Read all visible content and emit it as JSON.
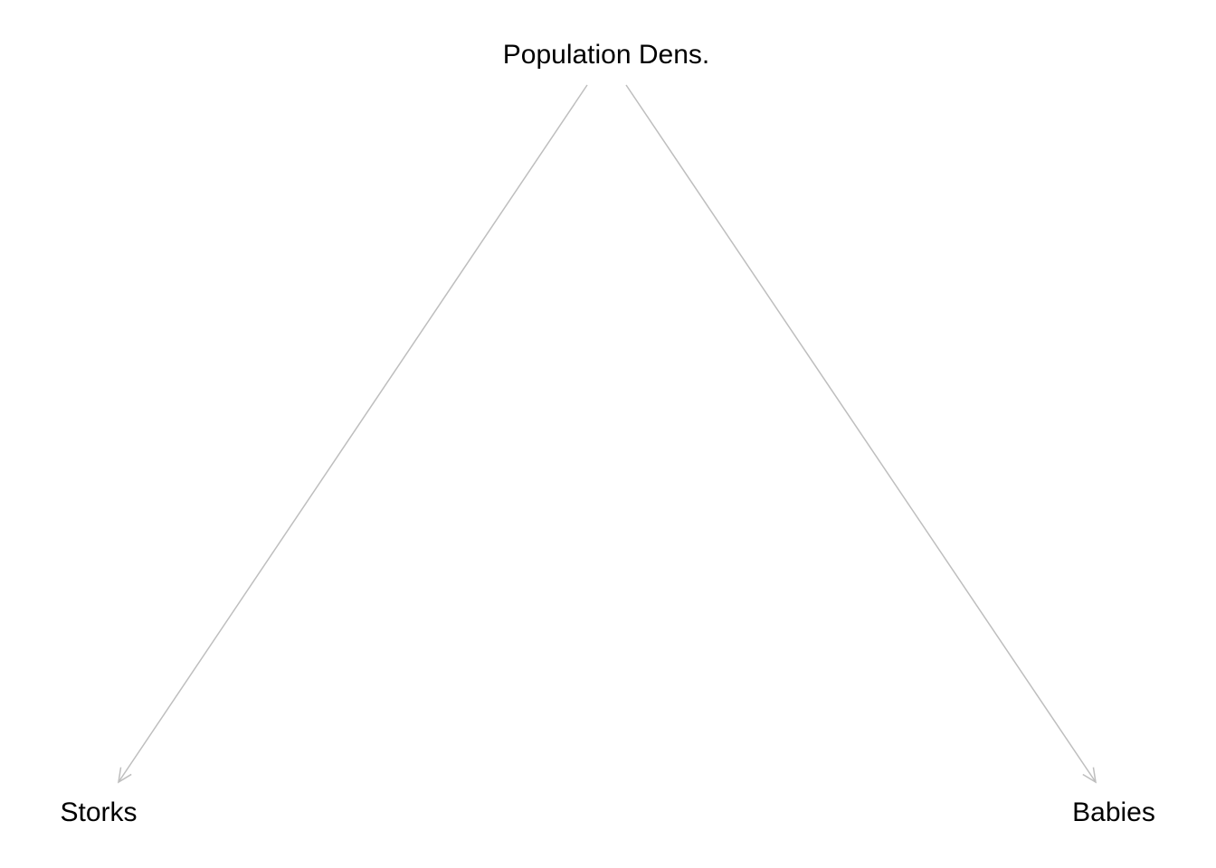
{
  "diagram": {
    "type": "directed-acyclic-graph",
    "edge_color": "#bebebe",
    "text_color": "#000000",
    "background": "#ffffff",
    "nodes": [
      {
        "id": "population",
        "label": "Population Dens."
      },
      {
        "id": "storks",
        "label": "Storks"
      },
      {
        "id": "babies",
        "label": "Babies"
      }
    ],
    "edges": [
      {
        "from": "population",
        "to": "storks"
      },
      {
        "from": "population",
        "to": "babies"
      }
    ]
  }
}
